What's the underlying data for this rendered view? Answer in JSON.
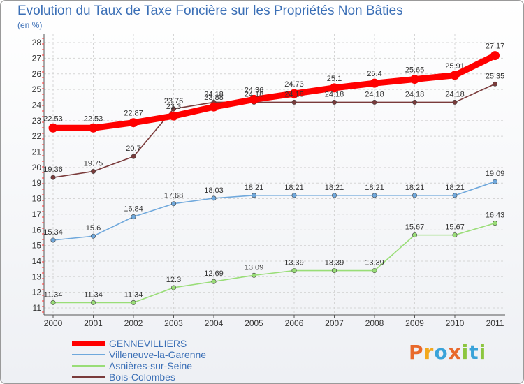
{
  "title": "Evolution du Taux de Taxe Foncière sur les Propriétés Non Bâties",
  "subtitle": "(en %)",
  "logo": {
    "text": "Proxiti",
    "colors": [
      "#e8692b",
      "#f2a81d",
      "#3aa3d9",
      "#e8692b",
      "#8cc63f",
      "#3aa3d9",
      "#8cc63f"
    ]
  },
  "chart_data": {
    "type": "line",
    "title": "Evolution du Taux de Taxe Foncière sur les Propriétés Non Bâties",
    "ylabel": "(en %)",
    "xlabel": "",
    "ylim": [
      11,
      28
    ],
    "yticks": [
      11,
      12,
      13,
      14,
      15,
      16,
      17,
      18,
      19,
      20,
      21,
      22,
      23,
      24,
      25,
      26,
      27,
      28
    ],
    "categories": [
      "2000",
      "2001",
      "2002",
      "2003",
      "2004",
      "2005",
      "2006",
      "2007",
      "2008",
      "2009",
      "2010",
      "2011"
    ],
    "legend_position": "bottom-left",
    "series": [
      {
        "name": "GENNEVILLIERS",
        "color": "#ff0000",
        "labels": [
          "22.53",
          "22.53",
          "22.87",
          "23.3",
          "23.88",
          "24.36",
          "24.73",
          "25.1",
          "25.4",
          "25.65",
          "25.91",
          "27.17"
        ],
        "values": [
          22.53,
          22.53,
          22.87,
          23.3,
          23.88,
          24.36,
          24.73,
          25.1,
          25.4,
          25.65,
          25.91,
          27.17
        ]
      },
      {
        "name": "Villeneuve-la-Garenne",
        "color": "#6fa8dc",
        "labels": [
          "15.34",
          "15.6",
          "16.84",
          "17.68",
          "18.03",
          "18.21",
          "18.21",
          "18.21",
          "18.21",
          "18.21",
          "18.21",
          "19.09"
        ],
        "values": [
          15.34,
          15.6,
          16.84,
          17.68,
          18.03,
          18.21,
          18.21,
          18.21,
          18.21,
          18.21,
          18.21,
          19.09
        ]
      },
      {
        "name": "Asnières-sur-Seine",
        "color": "#99dd77",
        "labels": [
          "11.34",
          "11.34",
          "11.34",
          "12.3",
          "12.69",
          "13.09",
          "13.39",
          "13.39",
          "13.39",
          "15.67",
          "15.67",
          "16.43"
        ],
        "values": [
          11.34,
          11.34,
          11.34,
          12.3,
          12.69,
          13.09,
          13.39,
          13.39,
          13.39,
          15.67,
          15.67,
          16.43
        ]
      },
      {
        "name": "Bois-Colombes",
        "color": "#7a3b3b",
        "labels": [
          "19.36",
          "19.75",
          "20.7",
          "23.76",
          "24.18",
          "24.18",
          "24.18",
          "24.18",
          "24.18",
          "24.18",
          "24.18",
          "25.35"
        ],
        "values": [
          19.36,
          19.75,
          20.7,
          23.76,
          24.18,
          24.18,
          24.18,
          24.18,
          24.18,
          24.18,
          24.18,
          25.35
        ]
      }
    ]
  }
}
